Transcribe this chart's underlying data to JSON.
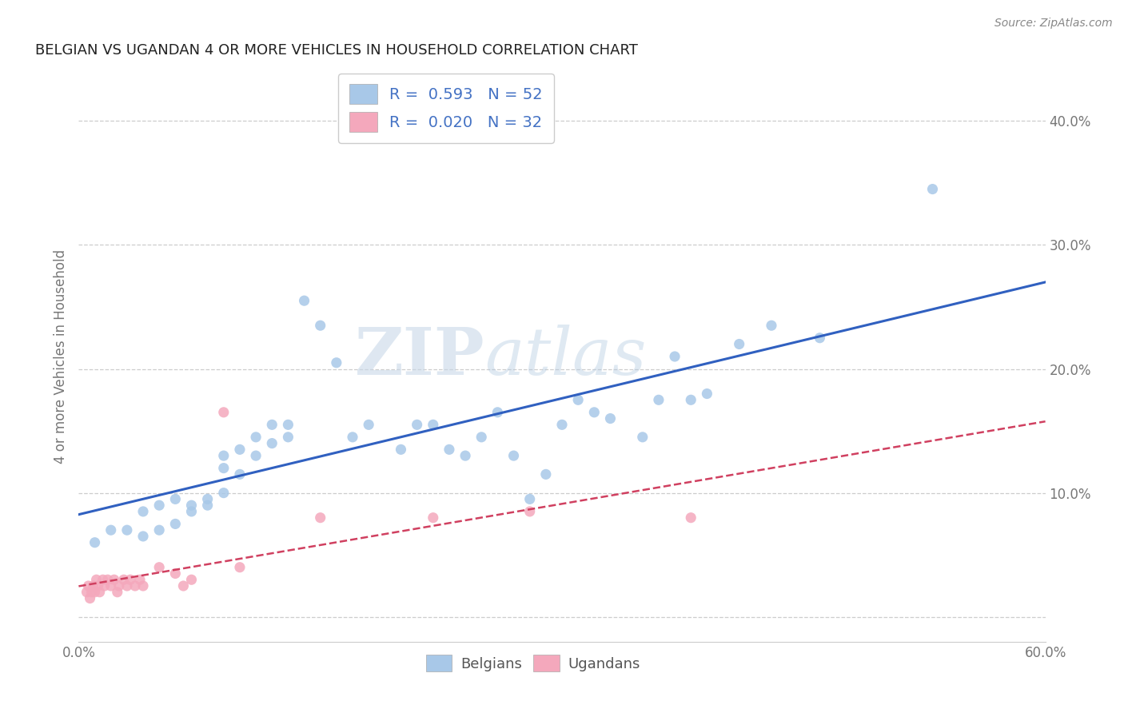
{
  "title": "BELGIAN VS UGANDAN 4 OR MORE VEHICLES IN HOUSEHOLD CORRELATION CHART",
  "source": "Source: ZipAtlas.com",
  "ylabel": "4 or more Vehicles in Household",
  "xlim": [
    0.0,
    0.6
  ],
  "ylim": [
    -0.02,
    0.44
  ],
  "belgian_color": "#A8C8E8",
  "ugandan_color": "#F4A8BC",
  "belgian_line_color": "#3060C0",
  "ugandan_line_color": "#D04060",
  "belgian_R": 0.593,
  "belgian_N": 52,
  "ugandan_R": 0.02,
  "ugandan_N": 32,
  "watermark": "ZIPatlas",
  "legend_labels": [
    "Belgians",
    "Ugandans"
  ],
  "belgian_scatter_x": [
    0.01,
    0.02,
    0.03,
    0.04,
    0.04,
    0.05,
    0.05,
    0.06,
    0.06,
    0.07,
    0.07,
    0.08,
    0.08,
    0.09,
    0.09,
    0.09,
    0.1,
    0.1,
    0.11,
    0.11,
    0.12,
    0.12,
    0.13,
    0.13,
    0.14,
    0.15,
    0.16,
    0.17,
    0.18,
    0.2,
    0.21,
    0.22,
    0.23,
    0.24,
    0.25,
    0.26,
    0.27,
    0.28,
    0.29,
    0.3,
    0.31,
    0.32,
    0.33,
    0.35,
    0.36,
    0.37,
    0.38,
    0.39,
    0.41,
    0.43,
    0.46,
    0.53
  ],
  "belgian_scatter_y": [
    0.06,
    0.07,
    0.07,
    0.065,
    0.085,
    0.07,
    0.09,
    0.075,
    0.095,
    0.085,
    0.09,
    0.09,
    0.095,
    0.1,
    0.12,
    0.13,
    0.115,
    0.135,
    0.13,
    0.145,
    0.155,
    0.14,
    0.145,
    0.155,
    0.255,
    0.235,
    0.205,
    0.145,
    0.155,
    0.135,
    0.155,
    0.155,
    0.135,
    0.13,
    0.145,
    0.165,
    0.13,
    0.095,
    0.115,
    0.155,
    0.175,
    0.165,
    0.16,
    0.145,
    0.175,
    0.21,
    0.175,
    0.18,
    0.22,
    0.235,
    0.225,
    0.345
  ],
  "ugandan_scatter_x": [
    0.005,
    0.006,
    0.007,
    0.008,
    0.009,
    0.01,
    0.011,
    0.012,
    0.013,
    0.015,
    0.016,
    0.018,
    0.02,
    0.022,
    0.024,
    0.025,
    0.028,
    0.03,
    0.032,
    0.035,
    0.038,
    0.04,
    0.05,
    0.06,
    0.065,
    0.07,
    0.09,
    0.1,
    0.15,
    0.22,
    0.28,
    0.38
  ],
  "ugandan_scatter_y": [
    0.02,
    0.025,
    0.015,
    0.02,
    0.025,
    0.02,
    0.03,
    0.025,
    0.02,
    0.03,
    0.025,
    0.03,
    0.025,
    0.03,
    0.02,
    0.025,
    0.03,
    0.025,
    0.03,
    0.025,
    0.03,
    0.025,
    0.04,
    0.035,
    0.025,
    0.03,
    0.165,
    0.04,
    0.08,
    0.08,
    0.085,
    0.08
  ],
  "grid_color": "#C8C8C8",
  "background_color": "#FFFFFF",
  "legend_text_color": "#4472C4",
  "tick_color": "#777777"
}
